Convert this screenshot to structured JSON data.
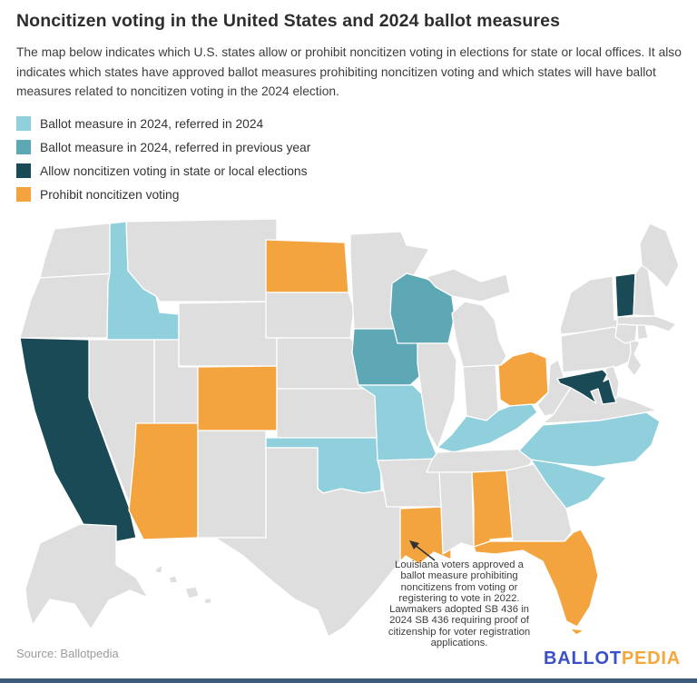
{
  "header": {
    "title": "Noncitizen voting in the United States and 2024 ballot measures",
    "description": "The map below indicates which U.S. states allow or prohibit noncitizen voting in elections for state or local offices. It also indicates which states have approved ballot measures prohibiting noncitizen voting and which states will have ballot measures related to noncitizen voting in the 2024 election."
  },
  "legend": {
    "items": [
      {
        "label": "Ballot measure in 2024, referred in 2024",
        "color": "#8fd0dc",
        "key": "referred2024"
      },
      {
        "label": "Ballot measure in 2024, referred in previous year",
        "color": "#5ea8b6",
        "key": "referredPrev"
      },
      {
        "label": "Allow noncitizen voting in state or local elections",
        "color": "#1a4a55",
        "key": "allow"
      },
      {
        "label": "Prohibit noncitizen voting",
        "color": "#f3a43e",
        "key": "prohibit"
      }
    ]
  },
  "map": {
    "category_colors": {
      "referred2024": "#8fd0dc",
      "referredPrev": "#5ea8b6",
      "allow": "#1a4a55",
      "prohibit": "#f3a43e",
      "none": "#dedede"
    },
    "state_categories": {
      "ID": "referred2024",
      "MO": "referred2024",
      "KY": "referred2024",
      "OK": "referred2024",
      "NC": "referred2024",
      "SC": "referred2024",
      "WI": "referredPrev",
      "IA": "referredPrev",
      "CA": "allow",
      "VT": "allow",
      "MD": "allow",
      "ND": "prohibit",
      "CO": "prohibit",
      "AZ": "prohibit",
      "OH": "prohibit",
      "LA": "prohibit",
      "AL": "prohibit",
      "FL": "prohibit"
    }
  },
  "annotation": {
    "lines": [
      "Louisiana voters approved a",
      "ballot measure prohibiting",
      "noncitizens from voting or",
      "registering to vote in 2022.",
      "Lawmakers adopted SB 436 in",
      "2024 SB 436 requiring proof of",
      "citizenship for voter registration",
      "applications."
    ]
  },
  "footer": {
    "source": "Source: Ballotpedia",
    "logo_part1": "BALLOT",
    "logo_part2": "PEDIA",
    "logo_color1": "#3a50c8",
    "logo_color2": "#f5a73b",
    "bar_color": "#3e5a7c"
  },
  "chart_data": {
    "type": "heatmap",
    "subtype": "us-choropleth",
    "title": "Noncitizen voting in the United States and 2024 ballot measures",
    "categories": [
      "Ballot measure in 2024, referred in 2024",
      "Ballot measure in 2024, referred in previous year",
      "Allow noncitizen voting in state or local elections",
      "Prohibit noncitizen voting"
    ],
    "data": {
      "Ballot measure in 2024, referred in 2024": [
        "Idaho",
        "Missouri",
        "Kentucky",
        "Oklahoma",
        "North Carolina",
        "South Carolina"
      ],
      "Ballot measure in 2024, referred in previous year": [
        "Wisconsin",
        "Iowa"
      ],
      "Allow noncitizen voting in state or local elections": [
        "California",
        "Vermont",
        "Maryland"
      ],
      "Prohibit noncitizen voting": [
        "North Dakota",
        "Colorado",
        "Arizona",
        "Ohio",
        "Louisiana",
        "Alabama",
        "Florida"
      ]
    },
    "annotation": "Louisiana voters approved a ballot measure prohibiting noncitizens from voting or registering to vote in 2022. Lawmakers adopted SB 436 in 2024 SB 436 requiring proof of citizenship for voter registration applications.",
    "legend_position": "top-left",
    "source": "Ballotpedia"
  }
}
